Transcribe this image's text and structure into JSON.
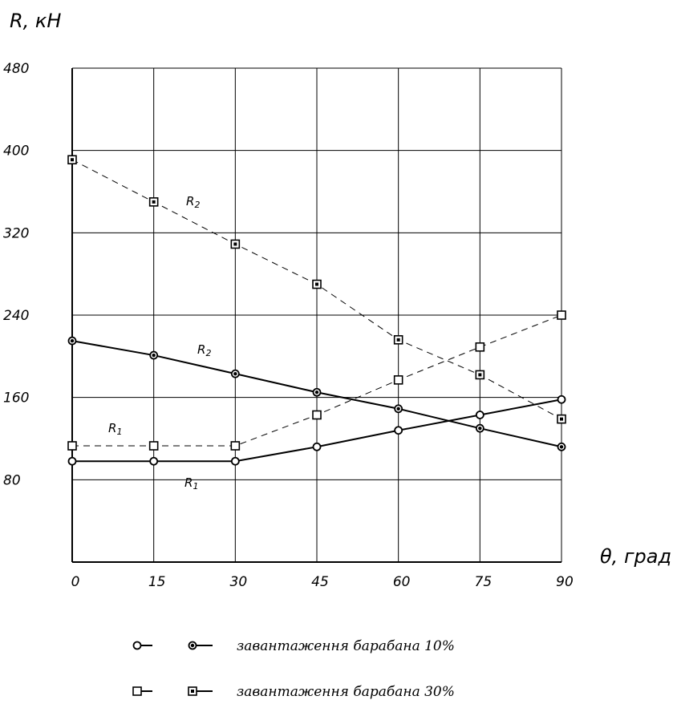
{
  "chart_data": {
    "type": "line",
    "ylabel": "R, кН",
    "xlabel": "θ, град",
    "x": [
      0,
      15,
      30,
      45,
      60,
      75,
      90
    ],
    "xlim": [
      0,
      90
    ],
    "ylim": [
      0,
      480
    ],
    "x_ticks": [
      "0",
      "15",
      "30",
      "45",
      "60",
      "75",
      "90"
    ],
    "y_ticks": [
      "80",
      "160",
      "240",
      "320",
      "400",
      "480"
    ],
    "grid": true,
    "series": [
      {
        "label": "R1",
        "group": "завантаження барабана 10%",
        "style": "solid",
        "marker": "circle-open",
        "values": [
          98,
          98,
          98,
          112,
          128,
          143,
          158
        ]
      },
      {
        "label": "R2",
        "group": "завантаження барабана 10%",
        "style": "solid",
        "marker": "circle-filled",
        "values": [
          215,
          201,
          183,
          165,
          149,
          130,
          112
        ]
      },
      {
        "label": "R1",
        "group": "завантаження барабана 30%",
        "style": "dashed",
        "marker": "square-open",
        "values": [
          113,
          113,
          113,
          143,
          177,
          209,
          240
        ]
      },
      {
        "label": "R2",
        "group": "завантаження барабана 30%",
        "style": "dashed",
        "marker": "square-filled",
        "values": [
          391,
          350,
          309,
          270,
          216,
          182,
          139
        ]
      }
    ],
    "legend": {
      "position": "bottom",
      "entries": [
        "завантаження барабана 10%",
        "завантаження барабана 30%"
      ]
    }
  }
}
